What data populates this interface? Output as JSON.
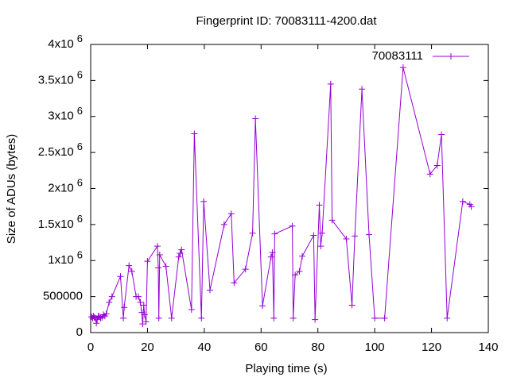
{
  "chart_data": {
    "type": "line",
    "title": "Fingerprint ID: 70083111-4200.dat",
    "x_label": "Playing time (s)",
    "y_label": "Size of ADUs (bytes)",
    "legend": "top-right",
    "xlim": [
      0,
      140
    ],
    "ylim": [
      0,
      4000000
    ],
    "xticks": [
      0,
      20,
      40,
      60,
      80,
      100,
      120,
      140
    ],
    "yticks": [
      0,
      500000,
      {
        "value": 1000000,
        "label": "1x10^6"
      },
      {
        "value": 1500000,
        "label": "1.5x10^6"
      },
      {
        "value": 2000000,
        "label": "2x10^6"
      },
      {
        "value": 2500000,
        "label": "2.5x10^6"
      },
      {
        "value": 3000000,
        "label": "3x10^6"
      },
      {
        "value": 3500000,
        "label": "3.5x10^6"
      },
      {
        "value": 4000000,
        "label": "4x10^6"
      }
    ],
    "x": [
      0.3,
      0.7,
      1,
      1.3,
      1.7,
      2,
      2.3,
      2.7,
      3,
      3.5,
      4,
      4.5,
      5,
      5.5,
      6.5,
      7.5,
      10.5,
      11.5,
      11.8,
      13.5,
      14.5,
      16,
      16.8,
      17.5,
      18,
      18.3,
      18.7,
      19,
      19.5,
      20,
      23.5,
      23.8,
      24,
      24.3,
      26.5,
      28.5,
      31,
      31.5,
      32,
      35.5,
      36.5,
      39,
      39.8,
      42,
      47,
      49.5,
      50.5,
      54.5,
      57,
      58,
      60.5,
      63.5,
      64,
      64.5,
      64.8,
      71,
      71.3,
      72,
      73.5,
      74.5,
      78.5,
      79,
      80.5,
      81,
      81.5,
      84.5,
      85,
      90,
      92,
      93,
      95.5,
      98,
      100,
      103.5,
      110,
      119.5,
      122,
      123.5,
      125.5,
      131,
      133.5,
      134
    ],
    "series": [
      {
        "name": "70083111",
        "color": "#9400d3",
        "values": [
          220000,
          200000,
          230000,
          210000,
          200000,
          130000,
          180000,
          230000,
          220000,
          200000,
          210000,
          250000,
          230000,
          260000,
          420000,
          500000,
          780000,
          200000,
          350000,
          930000,
          850000,
          500000,
          500000,
          420000,
          280000,
          120000,
          380000,
          250000,
          150000,
          990000,
          1200000,
          900000,
          200000,
          1080000,
          920000,
          200000,
          1050000,
          1100000,
          1150000,
          320000,
          2760000,
          200000,
          1820000,
          590000,
          1500000,
          1650000,
          690000,
          880000,
          1380000,
          2970000,
          370000,
          1050000,
          1110000,
          200000,
          1370000,
          1480000,
          200000,
          800000,
          850000,
          1060000,
          1350000,
          180000,
          1770000,
          1200000,
          1380000,
          3450000,
          1560000,
          1300000,
          380000,
          1340000,
          3380000,
          1360000,
          200000,
          200000,
          3680000,
          2200000,
          2320000,
          2750000,
          200000,
          1820000,
          1780000,
          1750000
        ]
      }
    ]
  }
}
